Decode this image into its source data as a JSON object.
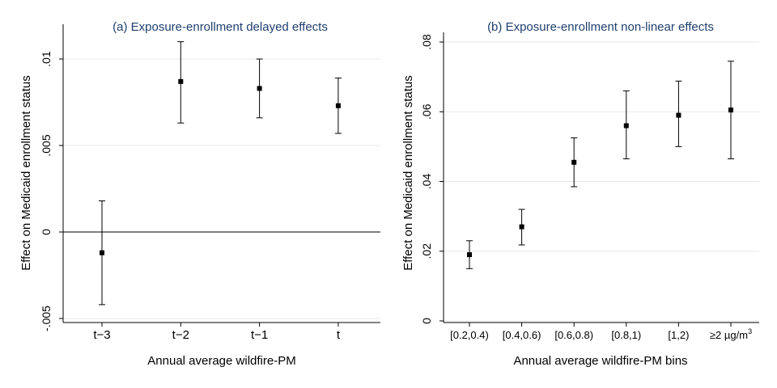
{
  "chart_data": [
    {
      "type": "scatter",
      "title": "(a) Exposure-enrollment delayed effects",
      "xlabel": "Annual average wildfire-PM",
      "ylabel": "Effect on Medicaid enrollment status",
      "categories": [
        "t−3",
        "t−2",
        "t−1",
        "t"
      ],
      "series": [
        {
          "values": [
            -0.0012,
            0.0087,
            0.0083,
            0.0073
          ],
          "ci_low": [
            -0.0042,
            0.0063,
            0.0066,
            0.0057
          ],
          "ci_high": [
            0.0018,
            0.011,
            0.01,
            0.0089
          ]
        }
      ],
      "ylim": [
        -0.005,
        0.011
      ],
      "yticks": [
        -0.005,
        0,
        0.005,
        0.01
      ],
      "ytick_labels": [
        "-.005",
        "0",
        ".005",
        ".01"
      ],
      "reference_line": 0,
      "grid": true,
      "title_color": "#1f3f6e"
    },
    {
      "type": "scatter",
      "title": "(b) Exposure-enrollment non-linear effects",
      "xlabel": "Annual average wildfire-PM bins",
      "ylabel": "Effect on Medicaid enrollment status",
      "categories": [
        "[0.2,0.4)",
        "[0.4,0.6)",
        "[0.6,0.8)",
        "[0.8,1)",
        "[1,2)",
        "≥2 µg/m"
      ],
      "category_superscripts": [
        "",
        "",
        "",
        "",
        "",
        "3"
      ],
      "series": [
        {
          "values": [
            0.019,
            0.027,
            0.0455,
            0.056,
            0.059,
            0.0605
          ],
          "ci_low": [
            0.015,
            0.0218,
            0.0385,
            0.0465,
            0.05,
            0.0465
          ],
          "ci_high": [
            0.023,
            0.032,
            0.0525,
            0.066,
            0.0688,
            0.0745
          ]
        }
      ],
      "ylim": [
        0,
        0.08
      ],
      "yticks": [
        0,
        0.02,
        0.04,
        0.06,
        0.08
      ],
      "ytick_labels": [
        "0",
        ".02",
        ".04",
        ".06",
        ".08"
      ],
      "grid": true,
      "title_color": "#1f3f6e"
    }
  ]
}
